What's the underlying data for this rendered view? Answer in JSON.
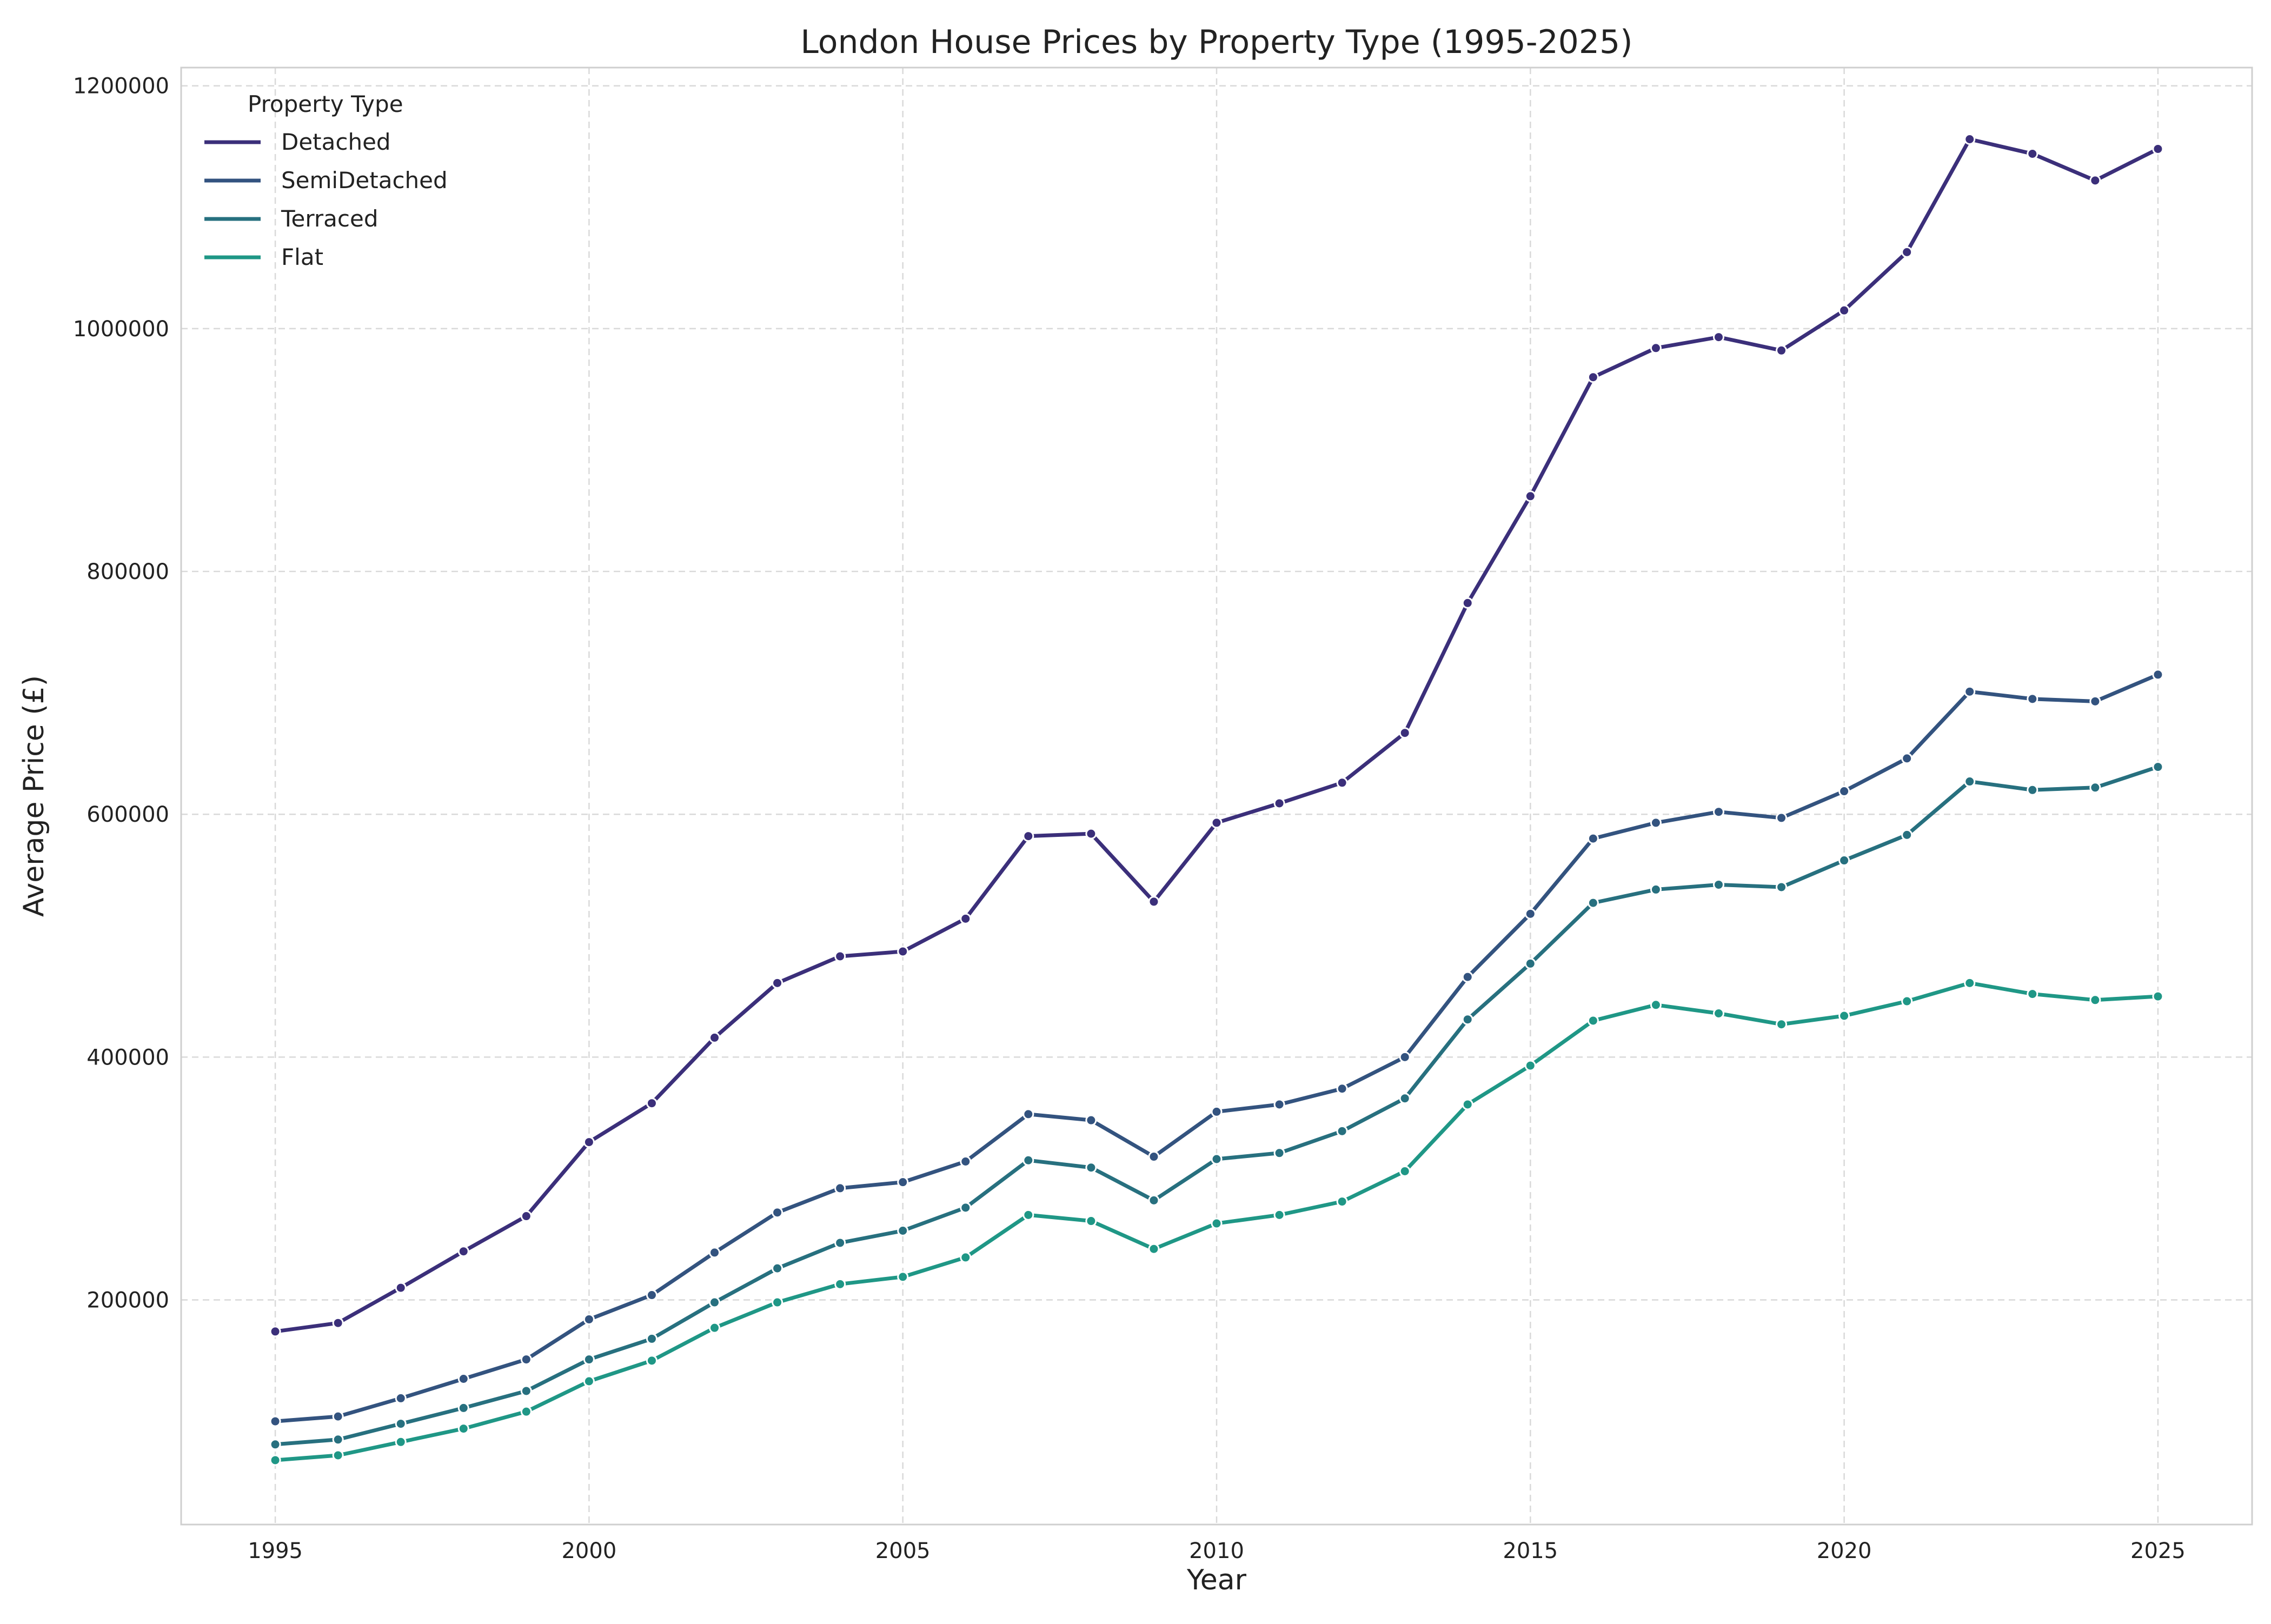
{
  "chart_data": {
    "type": "line",
    "title": "London House Prices by Property Type (1995-2025)",
    "xlabel": "Year",
    "ylabel": "Average Price (£)",
    "xlim": [
      1993.5,
      2026.5
    ],
    "ylim": [
      15000,
      1215000
    ],
    "xticks": [
      "1995",
      "2000",
      "2005",
      "2010",
      "2015",
      "2020",
      "2025"
    ],
    "yticks": [
      "200000",
      "400000",
      "600000",
      "800000",
      "1000000",
      "1200000"
    ],
    "grid": true,
    "legend": {
      "title": "Property Type",
      "placement": "top-left"
    },
    "x": [
      1995,
      1996,
      1997,
      1998,
      1999,
      2000,
      2001,
      2002,
      2003,
      2004,
      2005,
      2006,
      2007,
      2008,
      2009,
      2010,
      2011,
      2012,
      2013,
      2014,
      2015,
      2016,
      2017,
      2018,
      2019,
      2020,
      2021,
      2022,
      2023,
      2024,
      2025
    ],
    "series": [
      {
        "name": "Detached",
        "color": "#3b2f7a",
        "values": [
          174000,
          181000,
          210000,
          240000,
          269000,
          330000,
          362000,
          416000,
          461000,
          483000,
          487000,
          514000,
          582000,
          584000,
          528000,
          593000,
          609000,
          626000,
          667000,
          774000,
          862000,
          960000,
          984000,
          993000,
          982000,
          1015000,
          1063000,
          1156000,
          1144000,
          1122000,
          1148000
        ]
      },
      {
        "name": "SemiDetached",
        "color": "#33537f",
        "values": [
          100000,
          104000,
          119000,
          135000,
          151000,
          184000,
          204000,
          239000,
          272000,
          292000,
          297000,
          314000,
          353000,
          348000,
          318000,
          355000,
          361000,
          374000,
          400000,
          466000,
          518000,
          580000,
          593000,
          602000,
          597000,
          619000,
          646000,
          701000,
          695000,
          693000,
          715000
        ]
      },
      {
        "name": "Terraced",
        "color": "#27707f",
        "values": [
          81000,
          85000,
          98000,
          111000,
          125000,
          151000,
          168000,
          198000,
          226000,
          247000,
          257000,
          276000,
          315000,
          309000,
          282000,
          316000,
          321000,
          339000,
          366000,
          431000,
          477000,
          527000,
          538000,
          542000,
          540000,
          562000,
          583000,
          627000,
          620000,
          622000,
          639000
        ]
      },
      {
        "name": "Flat",
        "color": "#1f9786",
        "values": [
          68000,
          72000,
          83000,
          94000,
          108000,
          133000,
          150000,
          177000,
          198000,
          213000,
          219000,
          235000,
          270000,
          265000,
          242000,
          263000,
          270000,
          281000,
          306000,
          361000,
          393000,
          430000,
          443000,
          436000,
          427000,
          434000,
          446000,
          461000,
          452000,
          447000,
          450000
        ]
      }
    ]
  }
}
